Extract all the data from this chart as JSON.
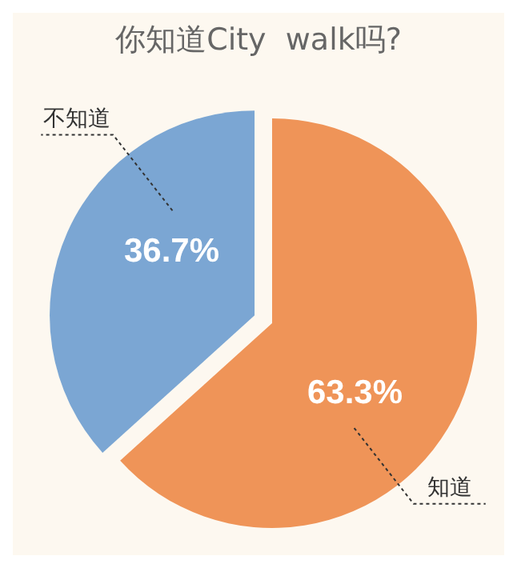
{
  "chart_data": {
    "type": "pie",
    "title": "你知道City  walk吗?",
    "categories": [
      "知道",
      "不知道"
    ],
    "values": [
      63.3,
      36.7
    ],
    "colors": [
      "#ef9458",
      "#7ba6d3"
    ],
    "value_labels": [
      "63.3%",
      "36.7%"
    ]
  }
}
